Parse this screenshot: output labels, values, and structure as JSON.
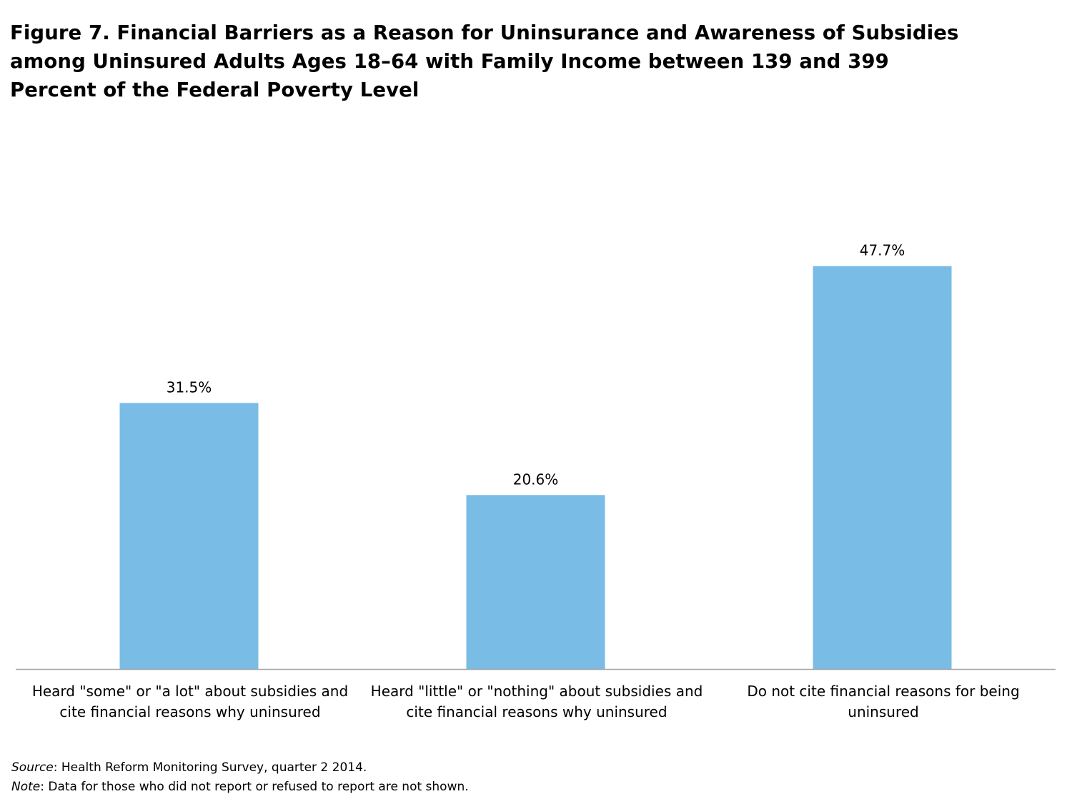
{
  "title": {
    "lines": [
      "Figure 7. Financial Barriers as a Reason for Uninsurance and Awareness of Subsidies",
      "among Uninsured Adults Ages 18–64 with Family Income between 139 and 399",
      "Percent of the Federal Poverty Level"
    ]
  },
  "chart_data": {
    "type": "bar",
    "categories": [
      "Heard \"some\" or \"a lot\" about subsidies and cite financial reasons why uninsured",
      "Heard \"little\" or \"nothing\" about subsidies and cite financial reasons why uninsured",
      "Do not cite financial reasons for being uninsured"
    ],
    "category_lines": [
      [
        "Heard \"some\" or \"a lot\" about subsidies and",
        "cite financial reasons why uninsured"
      ],
      [
        "Heard \"little\" or \"nothing\" about subsidies and",
        "cite financial reasons why uninsured"
      ],
      [
        "Do not cite financial reasons for being",
        "uninsured"
      ]
    ],
    "values": [
      31.5,
      20.6,
      47.7
    ],
    "data_labels": [
      "31.5%",
      "20.6%",
      "47.7%"
    ],
    "unit": "%",
    "ylim": [
      0,
      50
    ],
    "grid": false,
    "legend": "none",
    "bar_color": "#79bce6",
    "axis_color": "#a6a6a6"
  },
  "source": {
    "label": "Source",
    "text": ": Health Reform Monitoring Survey, quarter 2 2014."
  },
  "note": {
    "label": "Note",
    "text": ": Data for those who did not report or refused to report are not shown."
  }
}
